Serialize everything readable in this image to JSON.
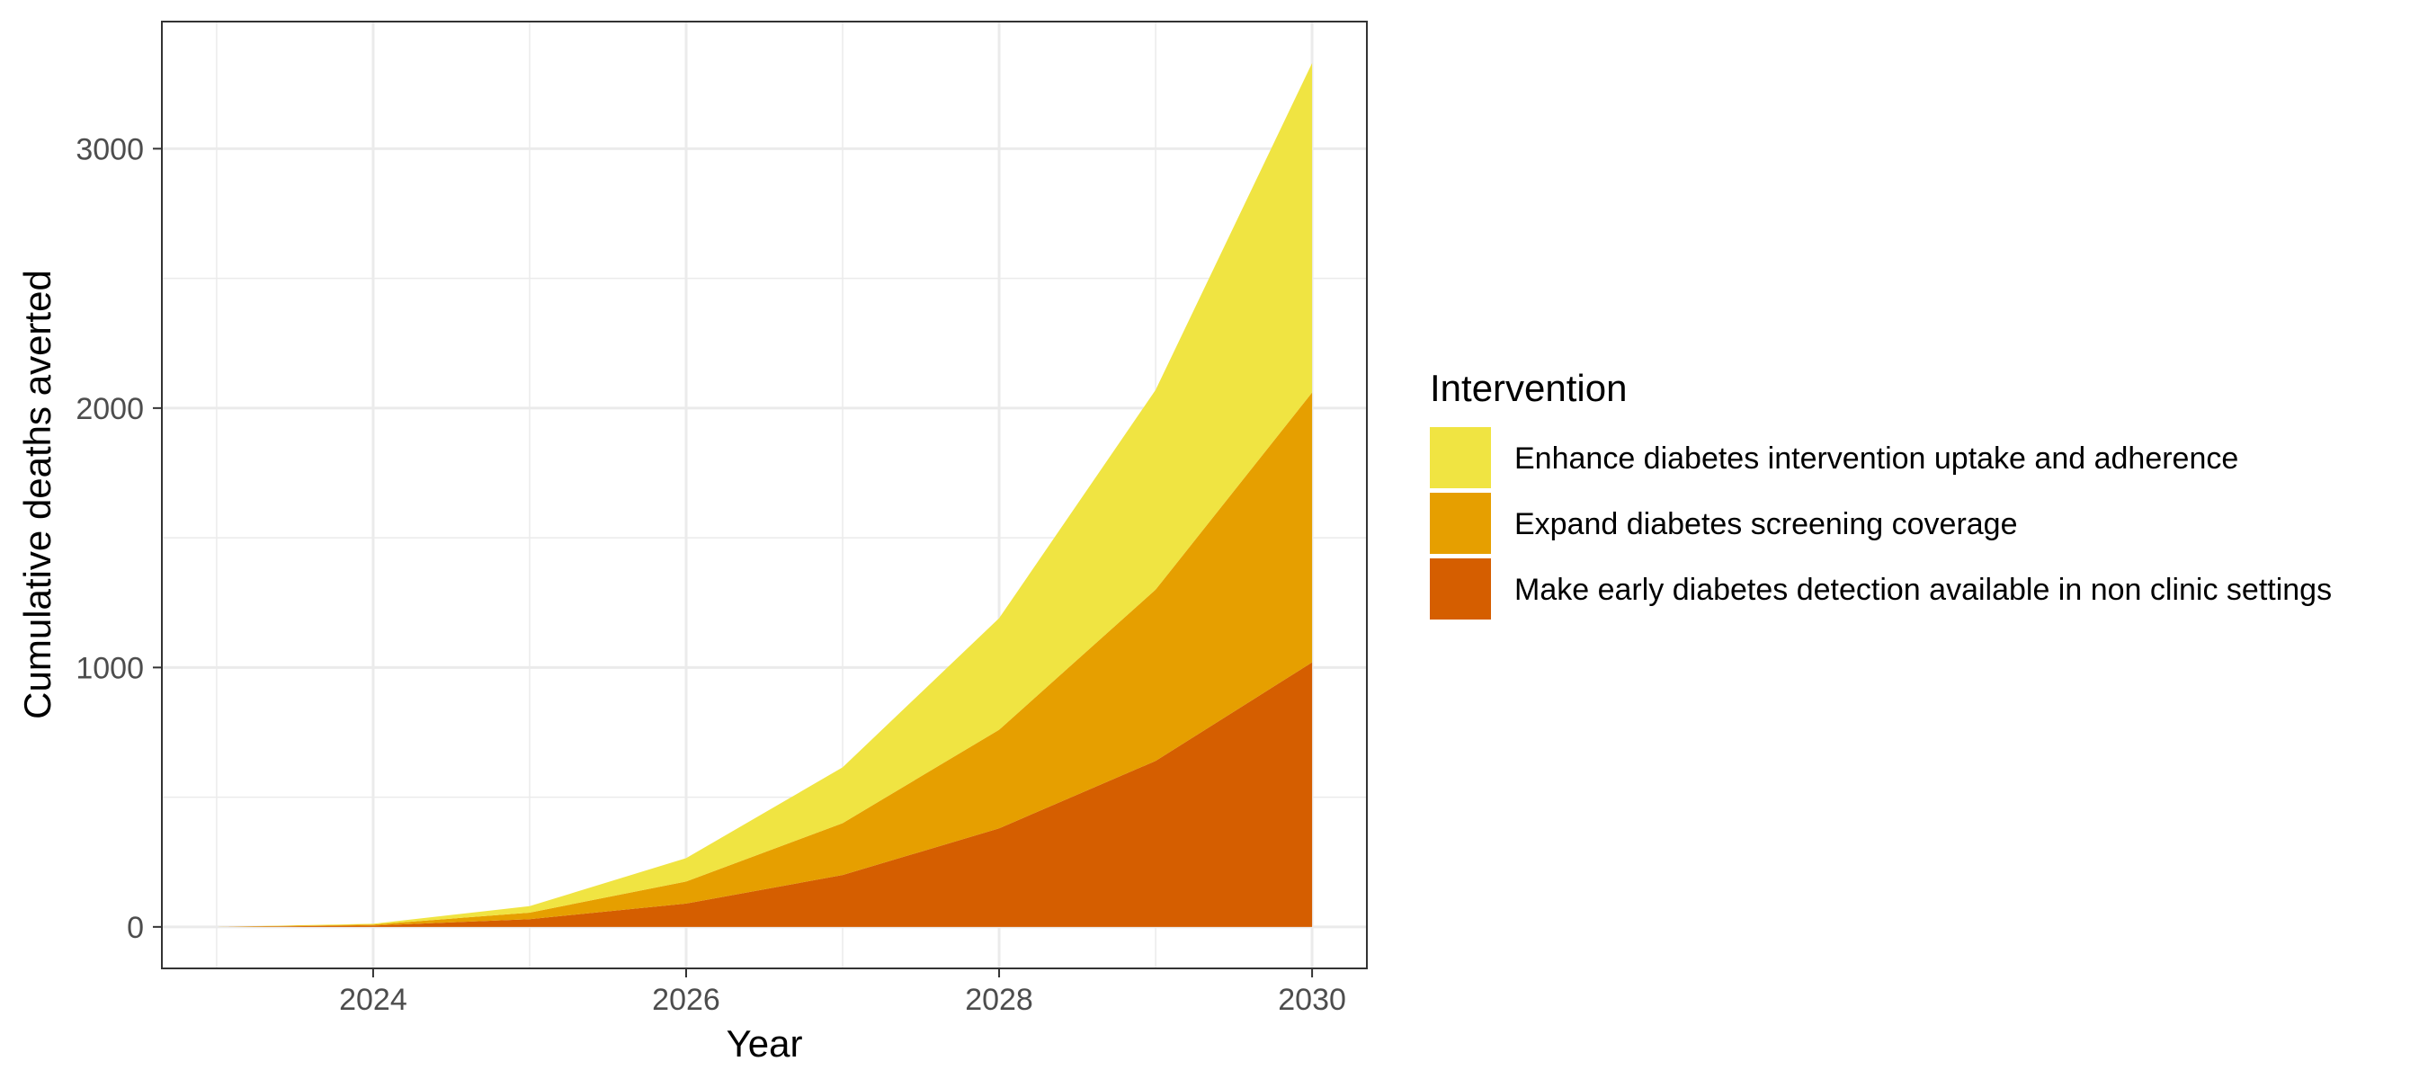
{
  "chart_data": {
    "type": "area",
    "stacked": true,
    "x": [
      2023,
      2024,
      2025,
      2026,
      2027,
      2028,
      2029,
      2030
    ],
    "xlim": [
      2022.65,
      2030.35
    ],
    "ylim": [
      -160,
      3490
    ],
    "x_ticks": [
      2024,
      2026,
      2028,
      2030
    ],
    "y_ticks": [
      0,
      1000,
      2000,
      3000
    ],
    "x_tick_labels": [
      "2024",
      "2026",
      "2028",
      "2030"
    ],
    "y_tick_labels": [
      "0",
      "1000",
      "2000",
      "3000"
    ],
    "xlabel": "Year",
    "ylabel": "Cumulative deaths averted",
    "grid": true,
    "legend": {
      "title": "Intervention",
      "position": "right"
    },
    "series": [
      {
        "name": "Make early diabetes detection available in non clinic settings",
        "color": "#D55E00",
        "values": [
          0,
          5,
          30,
          90,
          200,
          380,
          640,
          1020
        ]
      },
      {
        "name": "Expand diabetes screening coverage",
        "color": "#E69F00",
        "values": [
          0,
          4,
          25,
          85,
          200,
          380,
          660,
          1040
        ]
      },
      {
        "name": "Enhance diabetes intervention uptake and adherence",
        "color": "#F0E442",
        "values": [
          0,
          3,
          25,
          90,
          215,
          430,
          770,
          1270
        ]
      }
    ]
  }
}
